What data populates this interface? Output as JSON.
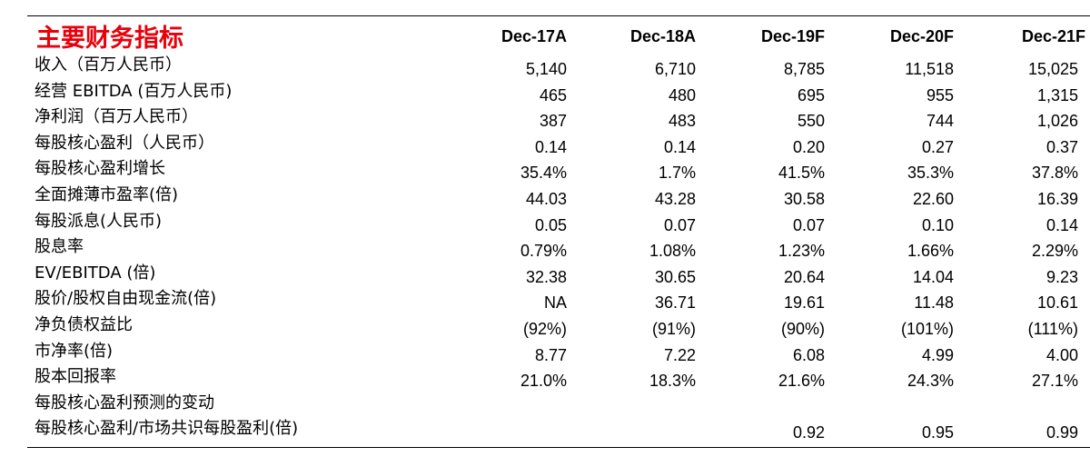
{
  "title": "主要财务指标",
  "columns": [
    "Dec-17A",
    "Dec-18A",
    "Dec-19F",
    "Dec-20F",
    "Dec-21F"
  ],
  "rows": [
    {
      "label": "收入（百万人民币）",
      "values": [
        "5,140",
        "6,710",
        "8,785",
        "11,518",
        "15,025"
      ]
    },
    {
      "label": "经营 EBITDA (百万人民币)",
      "values": [
        "465",
        "480",
        "695",
        "955",
        "1,315"
      ]
    },
    {
      "label": "净利润（百万人民币）",
      "values": [
        "387",
        "483",
        "550",
        "744",
        "1,026"
      ]
    },
    {
      "label": "每股核心盈利（人民币）",
      "values": [
        "0.14",
        "0.14",
        "0.20",
        "0.27",
        "0.37"
      ]
    },
    {
      "label": "每股核心盈利增长",
      "values": [
        "35.4%",
        "1.7%",
        "41.5%",
        "35.3%",
        "37.8%"
      ]
    },
    {
      "label": "全面摊薄市盈率(倍)",
      "values": [
        "44.03",
        "43.28",
        "30.58",
        "22.60",
        "16.39"
      ]
    },
    {
      "label": "每股派息(人民币)",
      "values": [
        "0.05",
        "0.07",
        "0.07",
        "0.10",
        "0.14"
      ]
    },
    {
      "label": "股息率",
      "values": [
        "0.79%",
        "1.08%",
        "1.23%",
        "1.66%",
        "2.29%"
      ]
    },
    {
      "label": "EV/EBITDA (倍)",
      "values": [
        "32.38",
        "30.65",
        "20.64",
        "14.04",
        "9.23"
      ]
    },
    {
      "label": "股价/股权自由现金流(倍)",
      "values": [
        "NA",
        "36.71",
        "19.61",
        "11.48",
        "10.61"
      ]
    },
    {
      "label": "净负债权益比",
      "values": [
        "(92%)",
        "(91%)",
        "(90%)",
        "(101%)",
        "(111%)"
      ]
    },
    {
      "label": "市净率(倍)",
      "values": [
        "8.77",
        "7.22",
        "6.08",
        "4.99",
        "4.00"
      ]
    },
    {
      "label": "股本回报率",
      "values": [
        "21.0%",
        "18.3%",
        "21.6%",
        "24.3%",
        "27.1%"
      ]
    },
    {
      "label": "每股核心盈利预测的变动",
      "values": [
        "",
        "",
        "",
        "",
        ""
      ]
    },
    {
      "label": "每股核心盈利/市场共识每股盈利(倍)",
      "values": [
        "",
        "",
        "0.92",
        "0.95",
        "0.99"
      ]
    }
  ]
}
